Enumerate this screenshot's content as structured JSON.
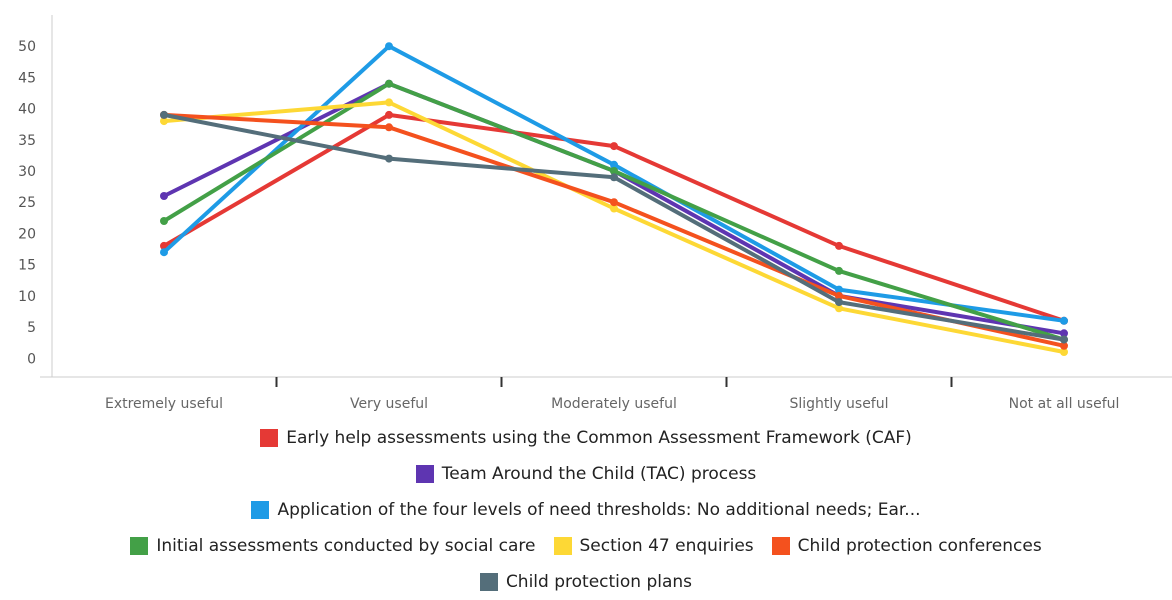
{
  "chart_data": {
    "type": "line",
    "categories": [
      "Extremely useful",
      "Very useful",
      "Moderately useful",
      "Slightly useful",
      "Not at all useful"
    ],
    "ylim": [
      -3,
      55
    ],
    "yticks": [
      0,
      5,
      10,
      15,
      20,
      25,
      30,
      35,
      40,
      45,
      50
    ],
    "grid": false,
    "legend_position": "bottom",
    "series": [
      {
        "name": "Early help assessments using the Common Assessment Framework (CAF)",
        "color": "#e53935",
        "values": [
          18,
          39,
          34,
          18,
          6
        ]
      },
      {
        "name": "Team Around the Child (TAC) process",
        "color": "#5e35b1",
        "values": [
          26,
          44,
          30,
          10,
          4
        ]
      },
      {
        "name": "Application of the four levels of need thresholds: No additional needs; Ear...",
        "color": "#1e9be6",
        "values": [
          17,
          50,
          31,
          11,
          6
        ]
      },
      {
        "name": "Initial assessments conducted by social care",
        "color": "#43a047",
        "values": [
          22,
          44,
          30,
          14,
          3
        ]
      },
      {
        "name": "Section 47 enquiries",
        "color": "#fdd835",
        "values": [
          38,
          41,
          24,
          8,
          1
        ]
      },
      {
        "name": "Child protection conferences",
        "color": "#f4511e",
        "values": [
          39,
          37,
          25,
          10,
          2
        ]
      },
      {
        "name": "Child protection plans",
        "color": "#546e7a",
        "values": [
          39,
          32,
          29,
          9,
          3
        ]
      }
    ]
  },
  "legend_rows": [
    [
      0
    ],
    [
      1
    ],
    [
      2
    ],
    [
      3,
      4,
      5
    ],
    [
      6
    ]
  ]
}
